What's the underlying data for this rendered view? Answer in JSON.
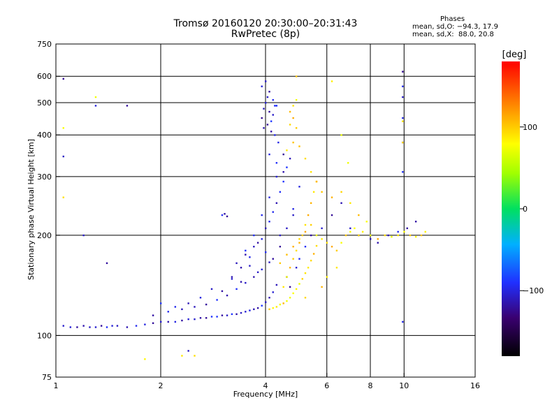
{
  "header": {
    "title_line1": "Tromsø 20160120 20:30:00–20:31:43",
    "title_line2": "RwPretec (8p)"
  },
  "phase_stats": {
    "label": "Phases",
    "line_o": "mean, sd,O: −94.3, 17.9",
    "line_x": "mean, sd,X:  88.0, 20.8"
  },
  "chart_data": {
    "type": "scatter",
    "xlabel": "Frequency [MHz]",
    "ylabel": "Stationary phase Virtual Height [km]",
    "x_scale": "log",
    "y_scale": "log",
    "xlim": [
      1,
      16
    ],
    "ylim": [
      75,
      750
    ],
    "x_ticks": [
      1,
      2,
      4,
      6,
      8,
      10,
      16
    ],
    "x_tick_labels": [
      "1",
      "2",
      "4",
      "6",
      "8",
      "10",
      "16"
    ],
    "y_ticks": [
      75,
      100,
      200,
      300,
      400,
      500,
      600,
      750
    ],
    "y_tick_labels": [
      "75",
      "100",
      "200",
      "300",
      "400",
      "500",
      "600",
      "750"
    ],
    "grid": true,
    "colorbar": {
      "label": "[deg]",
      "range": [
        -180,
        180
      ],
      "ticks": [
        100,
        0,
        -100
      ],
      "tick_labels": [
        "100",
        "0",
        "−100"
      ]
    },
    "series": [
      {
        "mode": "O",
        "points": [
          [
            1.05,
            107
          ],
          [
            1.1,
            106
          ],
          [
            1.15,
            106
          ],
          [
            1.2,
            107
          ],
          [
            1.25,
            106
          ],
          [
            1.3,
            106
          ],
          [
            1.35,
            107
          ],
          [
            1.4,
            106
          ],
          [
            1.45,
            107
          ],
          [
            1.5,
            107
          ],
          [
            1.6,
            106
          ],
          [
            1.7,
            107
          ],
          [
            1.8,
            108
          ],
          [
            1.9,
            109
          ],
          [
            2.0,
            110
          ],
          [
            2.1,
            110
          ],
          [
            2.2,
            110
          ],
          [
            2.3,
            111
          ],
          [
            2.4,
            112
          ],
          [
            2.5,
            112
          ],
          [
            2.6,
            113
          ],
          [
            2.7,
            113
          ],
          [
            2.8,
            114
          ],
          [
            2.9,
            114
          ],
          [
            3.0,
            115
          ],
          [
            3.1,
            115
          ],
          [
            3.2,
            116
          ],
          [
            3.3,
            116
          ],
          [
            3.4,
            117
          ],
          [
            3.5,
            118
          ],
          [
            3.6,
            119
          ],
          [
            3.7,
            120
          ],
          [
            3.8,
            121
          ],
          [
            3.9,
            123
          ],
          [
            4.0,
            126
          ],
          [
            4.1,
            130
          ],
          [
            4.2,
            135
          ],
          [
            4.3,
            142
          ],
          [
            1.9,
            115
          ],
          [
            2.1,
            118
          ],
          [
            2.3,
            120
          ],
          [
            2.5,
            122
          ],
          [
            2.7,
            124
          ],
          [
            2.9,
            128
          ],
          [
            3.1,
            132
          ],
          [
            3.3,
            138
          ],
          [
            3.5,
            144
          ],
          [
            3.7,
            150
          ],
          [
            3.9,
            158
          ],
          [
            4.1,
            166
          ],
          [
            2.2,
            122
          ],
          [
            2.6,
            130
          ],
          [
            3.0,
            136
          ],
          [
            3.4,
            145
          ],
          [
            3.8,
            155
          ],
          [
            4.2,
            170
          ],
          [
            4.4,
            185
          ],
          [
            4.6,
            210
          ],
          [
            4.8,
            240
          ],
          [
            5.0,
            280
          ],
          [
            2.0,
            125
          ],
          [
            2.4,
            125
          ],
          [
            2.8,
            138
          ],
          [
            3.2,
            148
          ],
          [
            3.6,
            162
          ],
          [
            4.0,
            178
          ],
          [
            4.4,
            200
          ],
          [
            4.8,
            230
          ],
          [
            3.2,
            150
          ],
          [
            3.4,
            160
          ],
          [
            3.6,
            172
          ],
          [
            3.8,
            190
          ],
          [
            4.0,
            210
          ],
          [
            4.2,
            235
          ],
          [
            4.4,
            270
          ],
          [
            4.6,
            320
          ],
          [
            3.5,
            180
          ],
          [
            3.7,
            200
          ],
          [
            3.9,
            230
          ],
          [
            4.1,
            260
          ],
          [
            4.3,
            300
          ],
          [
            4.5,
            350
          ],
          [
            4.7,
            340
          ],
          [
            3.3,
            165
          ],
          [
            3.5,
            175
          ],
          [
            3.7,
            185
          ],
          [
            3.9,
            195
          ],
          [
            4.1,
            220
          ],
          [
            4.3,
            250
          ],
          [
            4.5,
            290
          ],
          [
            3.9,
            450
          ],
          [
            3.95,
            480
          ],
          [
            4.0,
            500
          ],
          [
            4.05,
            520
          ],
          [
            4.1,
            470
          ],
          [
            4.15,
            440
          ],
          [
            4.2,
            460
          ],
          [
            4.25,
            490
          ],
          [
            3.9,
            560
          ],
          [
            4.0,
            580
          ],
          [
            4.1,
            540
          ],
          [
            4.2,
            510
          ],
          [
            4.3,
            490
          ],
          [
            3.95,
            420
          ],
          [
            4.05,
            430
          ],
          [
            4.15,
            410
          ],
          [
            4.25,
            400
          ],
          [
            4.35,
            380
          ],
          [
            4.1,
            350
          ],
          [
            4.3,
            330
          ],
          [
            4.5,
            310
          ],
          [
            3.0,
            230
          ],
          [
            3.05,
            232
          ],
          [
            3.1,
            228
          ],
          [
            4.6,
            150
          ],
          [
            4.7,
            140
          ],
          [
            4.9,
            160
          ],
          [
            5.0,
            170
          ],
          [
            5.2,
            185
          ],
          [
            5.4,
            200
          ],
          [
            5.8,
            210
          ],
          [
            6.2,
            230
          ],
          [
            6.6,
            250
          ],
          [
            7.0,
            210
          ],
          [
            7.4,
            200
          ],
          [
            8.0,
            195
          ],
          [
            8.4,
            190
          ],
          [
            9.0,
            200
          ],
          [
            9.6,
            205
          ],
          [
            10.2,
            210
          ],
          [
            10.8,
            220
          ],
          [
            1.05,
            590
          ],
          [
            1.3,
            490
          ],
          [
            1.6,
            490
          ],
          [
            2.4,
            90
          ],
          [
            1.4,
            165
          ],
          [
            1.2,
            200
          ],
          [
            1.05,
            345
          ],
          [
            9.9,
            620
          ],
          [
            9.9,
            560
          ],
          [
            9.9,
            520
          ],
          [
            9.9,
            450
          ],
          [
            9.9,
            380
          ],
          [
            9.9,
            310
          ],
          [
            9.9,
            110
          ]
        ]
      },
      {
        "mode": "X",
        "points": [
          [
            4.1,
            120
          ],
          [
            4.2,
            121
          ],
          [
            4.3,
            122
          ],
          [
            4.4,
            124
          ],
          [
            4.5,
            125
          ],
          [
            4.6,
            127
          ],
          [
            4.7,
            130
          ],
          [
            4.8,
            134
          ],
          [
            4.9,
            138
          ],
          [
            5.0,
            143
          ],
          [
            5.1,
            148
          ],
          [
            5.2,
            154
          ],
          [
            5.3,
            160
          ],
          [
            5.4,
            168
          ],
          [
            5.5,
            176
          ],
          [
            5.6,
            186
          ],
          [
            4.5,
            140
          ],
          [
            4.6,
            150
          ],
          [
            4.7,
            160
          ],
          [
            4.8,
            170
          ],
          [
            4.9,
            180
          ],
          [
            5.0,
            190
          ],
          [
            5.1,
            200
          ],
          [
            5.2,
            215
          ],
          [
            5.3,
            230
          ],
          [
            5.4,
            250
          ],
          [
            5.5,
            270
          ],
          [
            5.6,
            290
          ],
          [
            4.4,
            165
          ],
          [
            4.6,
            175
          ],
          [
            4.8,
            185
          ],
          [
            5.0,
            195
          ],
          [
            5.2,
            205
          ],
          [
            5.4,
            215
          ],
          [
            4.7,
            470
          ],
          [
            4.8,
            490
          ],
          [
            4.9,
            510
          ],
          [
            4.8,
            450
          ],
          [
            4.7,
            430
          ],
          [
            4.9,
            420
          ],
          [
            4.6,
            360
          ],
          [
            4.8,
            380
          ],
          [
            5.0,
            370
          ],
          [
            5.2,
            340
          ],
          [
            5.4,
            310
          ],
          [
            5.6,
            290
          ],
          [
            5.8,
            270
          ],
          [
            5.6,
            200
          ],
          [
            5.8,
            195
          ],
          [
            6.0,
            190
          ],
          [
            6.2,
            185
          ],
          [
            6.4,
            180
          ],
          [
            6.6,
            190
          ],
          [
            6.8,
            200
          ],
          [
            7.0,
            205
          ],
          [
            7.2,
            210
          ],
          [
            7.4,
            200
          ],
          [
            7.6,
            205
          ],
          [
            8.0,
            200
          ],
          [
            8.4,
            195
          ],
          [
            8.8,
            200
          ],
          [
            9.2,
            198
          ],
          [
            9.6,
            200
          ],
          [
            10.0,
            205
          ],
          [
            10.4,
            200
          ],
          [
            10.8,
            198
          ],
          [
            11.2,
            200
          ],
          [
            11.5,
            205
          ],
          [
            6.2,
            260
          ],
          [
            6.6,
            270
          ],
          [
            7.0,
            250
          ],
          [
            7.4,
            230
          ],
          [
            7.8,
            220
          ],
          [
            6.0,
            150
          ],
          [
            6.4,
            160
          ],
          [
            5.8,
            140
          ],
          [
            5.2,
            130
          ],
          [
            1.3,
            520
          ],
          [
            1.05,
            420
          ],
          [
            1.05,
            260
          ],
          [
            1.8,
            85
          ],
          [
            2.3,
            87
          ],
          [
            2.5,
            87
          ],
          [
            6.2,
            580
          ],
          [
            6.6,
            400
          ],
          [
            6.9,
            330
          ],
          [
            4.9,
            600
          ],
          [
            9.9,
            440
          ],
          [
            9.9,
            380
          ]
        ]
      }
    ]
  }
}
